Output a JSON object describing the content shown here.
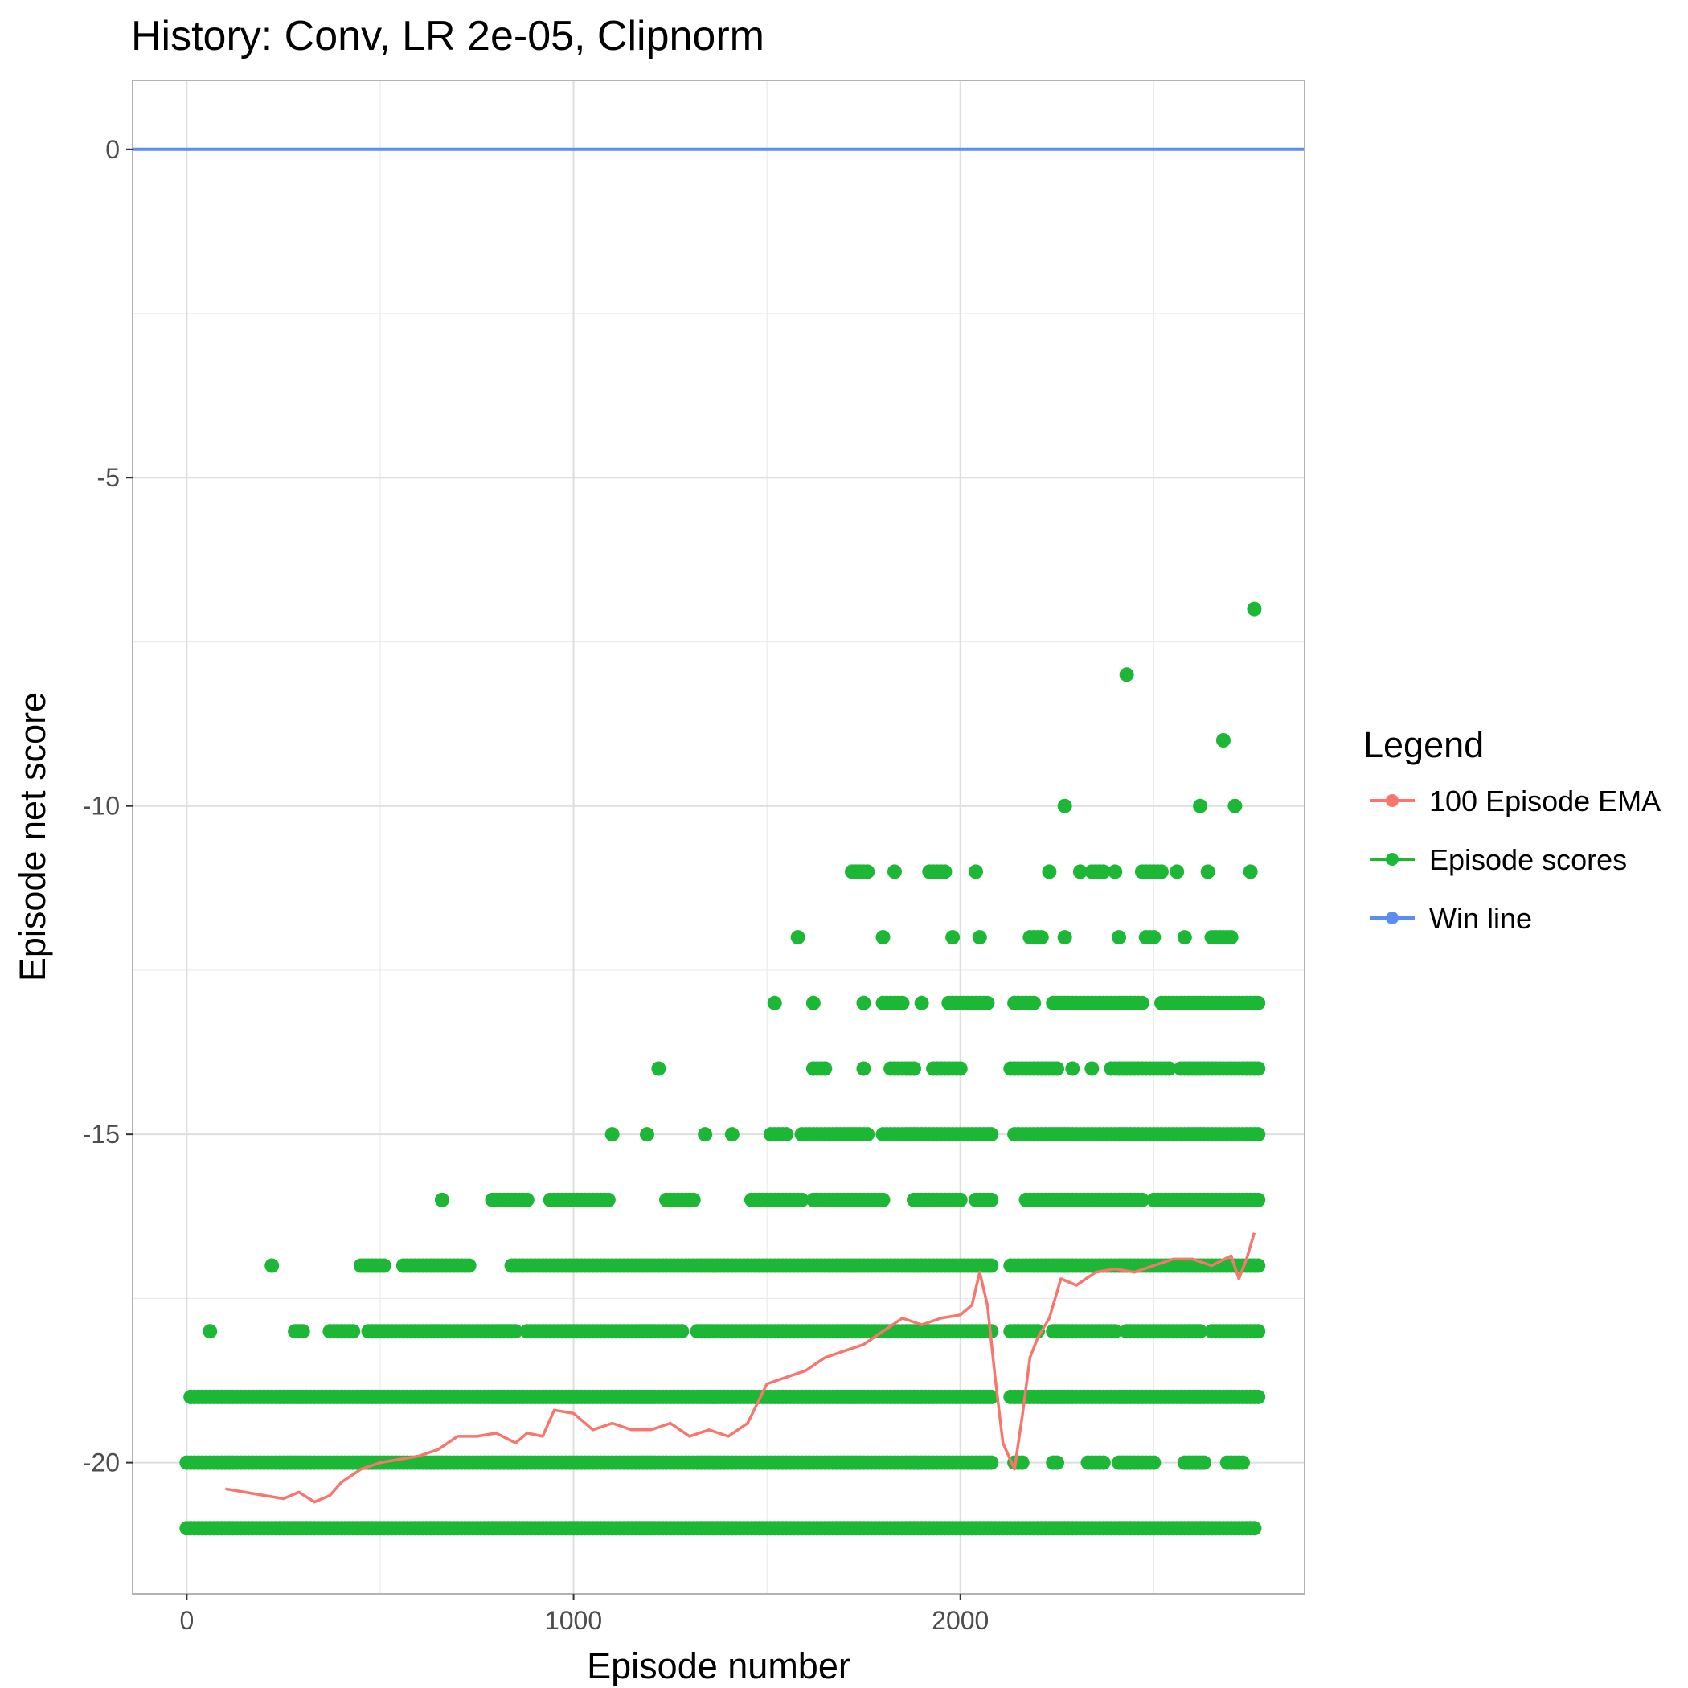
{
  "chart_data": {
    "type": "scatter",
    "title": "History: Conv, LR 2e-05, Clipnorm",
    "xlabel": "Episode number",
    "ylabel": "Episode net score",
    "xlim": [
      -140,
      2890
    ],
    "ylim": [
      -22.0,
      1.05
    ],
    "x_ticks": [
      0,
      1000,
      2000
    ],
    "x_tick_labels": [
      "0",
      "1000",
      "2000"
    ],
    "y_ticks": [
      0,
      -5,
      -10,
      -15,
      -20
    ],
    "y_tick_labels": [
      "0",
      "-5",
      "-10",
      "-15",
      "-20"
    ],
    "grid": true,
    "legend": {
      "title": "Legend",
      "position": "right",
      "entries": [
        {
          "label": "100 Episode EMA",
          "color": "#F8766D"
        },
        {
          "label": "Episode scores",
          "color": "#1DB736"
        },
        {
          "label": "Win line",
          "color": "#5B8DF5"
        }
      ]
    },
    "series": [
      {
        "name": "Win line",
        "kind": "hline",
        "color": "#5B8DF5",
        "y": 0
      },
      {
        "name": "Episode scores",
        "kind": "points",
        "color": "#1DB736",
        "rows": [
          {
            "y": -21,
            "segments": [
              [
                0,
                2760
              ]
            ]
          },
          {
            "y": -20,
            "segments": [
              [
                0,
                2080
              ],
              [
                2140,
                2160
              ],
              [
                2240,
                2250
              ],
              [
                2330,
                2370
              ],
              [
                2410,
                2500
              ],
              [
                2580,
                2630
              ],
              [
                2690,
                2730
              ]
            ]
          },
          {
            "y": -19,
            "segments": [
              [
                10,
                2080
              ],
              [
                2130,
                2770
              ]
            ]
          },
          {
            "y": -18,
            "segments": [
              [
                60,
                60
              ],
              [
                280,
                300
              ],
              [
                370,
                430
              ],
              [
                470,
                850
              ],
              [
                880,
                1280
              ],
              [
                1320,
                2080
              ],
              [
                2130,
                2200
              ],
              [
                2240,
                2400
              ],
              [
                2430,
                2620
              ],
              [
                2650,
                2770
              ]
            ]
          },
          {
            "y": -17,
            "segments": [
              [
                220,
                220
              ],
              [
                450,
                510
              ],
              [
                560,
                730
              ],
              [
                840,
                2080
              ],
              [
                2130,
                2770
              ]
            ]
          },
          {
            "y": -16,
            "segments": [
              [
                660,
                660
              ],
              [
                790,
                880
              ],
              [
                940,
                1090
              ],
              [
                1240,
                1310
              ],
              [
                1460,
                1590
              ],
              [
                1620,
                1800
              ],
              [
                1880,
                2000
              ],
              [
                2040,
                2080
              ],
              [
                2170,
                2470
              ],
              [
                2500,
                2770
              ]
            ]
          },
          {
            "y": -15,
            "segments": [
              [
                1100,
                1100
              ],
              [
                1190,
                1190
              ],
              [
                1340,
                1340
              ],
              [
                1410,
                1410
              ],
              [
                1510,
                1550
              ],
              [
                1590,
                1760
              ],
              [
                1800,
                2080
              ],
              [
                2140,
                2770
              ]
            ]
          },
          {
            "y": -14,
            "segments": [
              [
                1220,
                1220
              ],
              [
                1620,
                1650
              ],
              [
                1750,
                1750
              ],
              [
                1820,
                1880
              ],
              [
                1930,
                2000
              ],
              [
                2130,
                2250
              ],
              [
                2290,
                2290
              ],
              [
                2340,
                2340
              ],
              [
                2390,
                2540
              ],
              [
                2570,
                2770
              ]
            ]
          },
          {
            "y": -13,
            "segments": [
              [
                1520,
                1520
              ],
              [
                1620,
                1620
              ],
              [
                1750,
                1750
              ],
              [
                1800,
                1850
              ],
              [
                1900,
                1900
              ],
              [
                1970,
                2070
              ],
              [
                2140,
                2190
              ],
              [
                2240,
                2470
              ],
              [
                2520,
                2770
              ]
            ]
          },
          {
            "y": -12,
            "segments": [
              [
                1580,
                1580
              ],
              [
                1800,
                1800
              ],
              [
                1980,
                1980
              ],
              [
                2050,
                2050
              ],
              [
                2180,
                2210
              ],
              [
                2270,
                2270
              ],
              [
                2410,
                2410
              ],
              [
                2480,
                2500
              ],
              [
                2580,
                2580
              ],
              [
                2650,
                2700
              ]
            ]
          },
          {
            "y": -11,
            "segments": [
              [
                1720,
                1760
              ],
              [
                1830,
                1830
              ],
              [
                1920,
                1960
              ],
              [
                2040,
                2040
              ],
              [
                2230,
                2230
              ],
              [
                2310,
                2310
              ],
              [
                2340,
                2370
              ],
              [
                2400,
                2400
              ],
              [
                2470,
                2520
              ],
              [
                2560,
                2560
              ],
              [
                2640,
                2640
              ],
              [
                2750,
                2750
              ]
            ]
          },
          {
            "y": -10,
            "segments": [
              [
                2270,
                2270
              ],
              [
                2620,
                2620
              ],
              [
                2710,
                2710
              ]
            ]
          },
          {
            "y": -9,
            "segments": [
              [
                2680,
                2680
              ]
            ]
          },
          {
            "y": -8,
            "segments": [
              [
                2430,
                2430
              ]
            ]
          },
          {
            "y": -7,
            "segments": [
              [
                2760,
                2760
              ]
            ]
          }
        ]
      },
      {
        "name": "100 Episode EMA",
        "kind": "line",
        "color": "#F8766D",
        "x": [
          100,
          150,
          200,
          250,
          290,
          330,
          370,
          400,
          450,
          500,
          550,
          600,
          650,
          700,
          750,
          800,
          850,
          880,
          920,
          950,
          1000,
          1050,
          1100,
          1150,
          1200,
          1250,
          1300,
          1350,
          1400,
          1450,
          1500,
          1550,
          1600,
          1650,
          1700,
          1750,
          1800,
          1850,
          1900,
          1950,
          2000,
          2030,
          2050,
          2070,
          2090,
          2110,
          2140,
          2160,
          2180,
          2200,
          2230,
          2260,
          2300,
          2350,
          2400,
          2450,
          2500,
          2550,
          2600,
          2650,
          2700,
          2720,
          2740,
          2760
        ],
        "y": [
          -20.4,
          -20.45,
          -20.5,
          -20.55,
          -20.45,
          -20.6,
          -20.5,
          -20.3,
          -20.1,
          -20.0,
          -19.95,
          -19.9,
          -19.8,
          -19.6,
          -19.6,
          -19.55,
          -19.7,
          -19.55,
          -19.6,
          -19.2,
          -19.25,
          -19.5,
          -19.4,
          -19.5,
          -19.5,
          -19.4,
          -19.6,
          -19.5,
          -19.6,
          -19.4,
          -18.8,
          -18.7,
          -18.6,
          -18.4,
          -18.3,
          -18.2,
          -18.0,
          -17.8,
          -17.9,
          -17.8,
          -17.75,
          -17.6,
          -17.1,
          -17.6,
          -18.7,
          -19.7,
          -20.1,
          -19.3,
          -18.4,
          -18.1,
          -17.8,
          -17.2,
          -17.3,
          -17.1,
          -17.05,
          -17.1,
          -17.0,
          -16.9,
          -16.9,
          -17.0,
          -16.85,
          -17.2,
          -16.9,
          -16.5
        ]
      }
    ]
  }
}
